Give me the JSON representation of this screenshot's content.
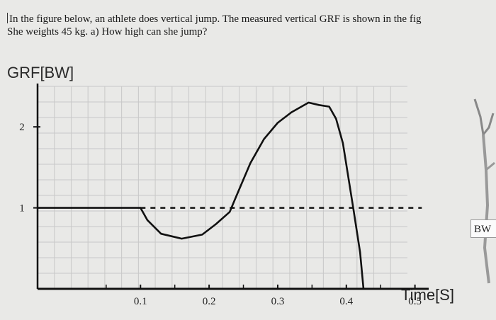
{
  "question": {
    "line1": "In the figure below, an athlete does vertical jump. The measured vertical GRF is shown in the fig",
    "line2": "She weights 45 kg. a) How high can she jump?"
  },
  "figure_label": "BW",
  "chart_data": {
    "type": "line",
    "title": "",
    "ylabel": "GRF[BW]",
    "xlabel": "Time[S]",
    "xlim": [
      -0.05,
      0.52
    ],
    "ylim": [
      0,
      2.5
    ],
    "xticks": [
      "0.1",
      "0.2",
      "0.3",
      "0.4",
      "0.5"
    ],
    "xtick_values": [
      0.1,
      0.2,
      0.3,
      0.4,
      0.5
    ],
    "yticks": [
      "1",
      "2"
    ],
    "ytick_values": [
      1,
      2
    ],
    "grid": true,
    "series": [
      {
        "style": "solid",
        "color": "#111111",
        "x": [
          -0.05,
          0.0,
          0.05,
          0.1,
          0.11,
          0.13,
          0.16,
          0.19,
          0.21,
          0.23,
          0.24,
          0.26,
          0.28,
          0.3,
          0.32,
          0.345,
          0.36,
          0.375,
          0.385,
          0.395,
          0.41,
          0.42,
          0.425
        ],
        "y": [
          1.0,
          1.0,
          1.0,
          1.0,
          0.85,
          0.68,
          0.62,
          0.67,
          0.8,
          0.95,
          1.15,
          1.55,
          1.85,
          2.05,
          2.18,
          2.3,
          2.27,
          2.25,
          2.1,
          1.8,
          1.0,
          0.45,
          0.0
        ]
      },
      {
        "style": "dashed",
        "color": "#111111",
        "x": [
          0.1,
          0.51
        ],
        "y": [
          1.0,
          1.0
        ]
      }
    ]
  }
}
